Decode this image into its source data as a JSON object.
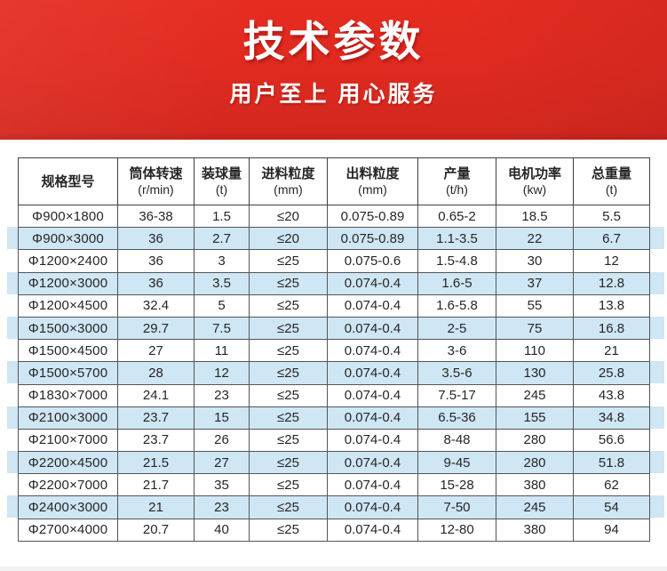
{
  "banner": {
    "title": "技术参数",
    "subtitle": "用户至上 用心服务",
    "text_color": "#ffffff",
    "background_red_top": "#e62c21",
    "background_red_mid": "#e02a20",
    "background_red_bottom": "#d0271e"
  },
  "table": {
    "columns": [
      {
        "label": "规格型号",
        "unit": ""
      },
      {
        "label": "筒体转速",
        "unit": "(r/min)"
      },
      {
        "label": "装球量",
        "unit": "(t)"
      },
      {
        "label": "进料粒度",
        "unit": "(mm)"
      },
      {
        "label": "出料粒度",
        "unit": "(mm)"
      },
      {
        "label": "产量",
        "unit": "(t/h)"
      },
      {
        "label": "电机功率",
        "unit": "(kw)"
      },
      {
        "label": "总重量",
        "unit": "(t)"
      }
    ],
    "rows": [
      {
        "model": "Φ900×1800",
        "speed": "36-38",
        "balls": "1.5",
        "feed": "≤20",
        "discharge": "0.075-0.89",
        "capacity": "0.65-2",
        "power": "18.5",
        "weight": "5.5",
        "highlighted": false
      },
      {
        "model": "Φ900×3000",
        "speed": "36",
        "balls": "2.7",
        "feed": "≤20",
        "discharge": "0.075-0.89",
        "capacity": "1.1-3.5",
        "power": "22",
        "weight": "6.7",
        "highlighted": true
      },
      {
        "model": "Φ1200×2400",
        "speed": "36",
        "balls": "3",
        "feed": "≤25",
        "discharge": "0.075-0.6",
        "capacity": "1.5-4.8",
        "power": "30",
        "weight": "12",
        "highlighted": false
      },
      {
        "model": "Φ1200×3000",
        "speed": "36",
        "balls": "3.5",
        "feed": "≤25",
        "discharge": "0.074-0.4",
        "capacity": "1.6-5",
        "power": "37",
        "weight": "12.8",
        "highlighted": true
      },
      {
        "model": "Φ1200×4500",
        "speed": "32.4",
        "balls": "5",
        "feed": "≤25",
        "discharge": "0.074-0.4",
        "capacity": "1.6-5.8",
        "power": "55",
        "weight": "13.8",
        "highlighted": false
      },
      {
        "model": "Φ1500×3000",
        "speed": "29.7",
        "balls": "7.5",
        "feed": "≤25",
        "discharge": "0.074-0.4",
        "capacity": "2-5",
        "power": "75",
        "weight": "16.8",
        "highlighted": true
      },
      {
        "model": "Φ1500×4500",
        "speed": "27",
        "balls": "11",
        "feed": "≤25",
        "discharge": "0.074-0.4",
        "capacity": "3-6",
        "power": "110",
        "weight": "21",
        "highlighted": false
      },
      {
        "model": "Φ1500×5700",
        "speed": "28",
        "balls": "12",
        "feed": "≤25",
        "discharge": "0.074-0.4",
        "capacity": "3.5-6",
        "power": "130",
        "weight": "25.8",
        "highlighted": true
      },
      {
        "model": "Φ1830×7000",
        "speed": "24.1",
        "balls": "23",
        "feed": "≤25",
        "discharge": "0.074-0.4",
        "capacity": "7.5-17",
        "power": "245",
        "weight": "43.8",
        "highlighted": false
      },
      {
        "model": "Φ2100×3000",
        "speed": "23.7",
        "balls": "15",
        "feed": "≤25",
        "discharge": "0.074-0.4",
        "capacity": "6.5-36",
        "power": "155",
        "weight": "34.8",
        "highlighted": true
      },
      {
        "model": "Φ2100×7000",
        "speed": "23.7",
        "balls": "26",
        "feed": "≤25",
        "discharge": "0.074-0.4",
        "capacity": "8-48",
        "power": "280",
        "weight": "56.6",
        "highlighted": false
      },
      {
        "model": "Φ2200×4500",
        "speed": "21.5",
        "balls": "27",
        "feed": "≤25",
        "discharge": "0.074-0.4",
        "capacity": "9-45",
        "power": "280",
        "weight": "51.8",
        "highlighted": true
      },
      {
        "model": "Φ2200×7000",
        "speed": "21.7",
        "balls": "35",
        "feed": "≤25",
        "discharge": "0.074-0.4",
        "capacity": "15-28",
        "power": "380",
        "weight": "62",
        "highlighted": false
      },
      {
        "model": "Φ2400×3000",
        "speed": "21",
        "balls": "23",
        "feed": "≤25",
        "discharge": "0.074-0.4",
        "capacity": "7-50",
        "power": "245",
        "weight": "54",
        "highlighted": true
      },
      {
        "model": "Φ2700×4000",
        "speed": "20.7",
        "balls": "40",
        "feed": "≤25",
        "discharge": "0.074-0.4",
        "capacity": "12-80",
        "power": "380",
        "weight": "94",
        "highlighted": false
      }
    ],
    "zebra_highlight_color": "#cfe6f4",
    "border_color": "#555555",
    "border_color_dark": "#3f3f3f",
    "text_color": "#262626"
  }
}
